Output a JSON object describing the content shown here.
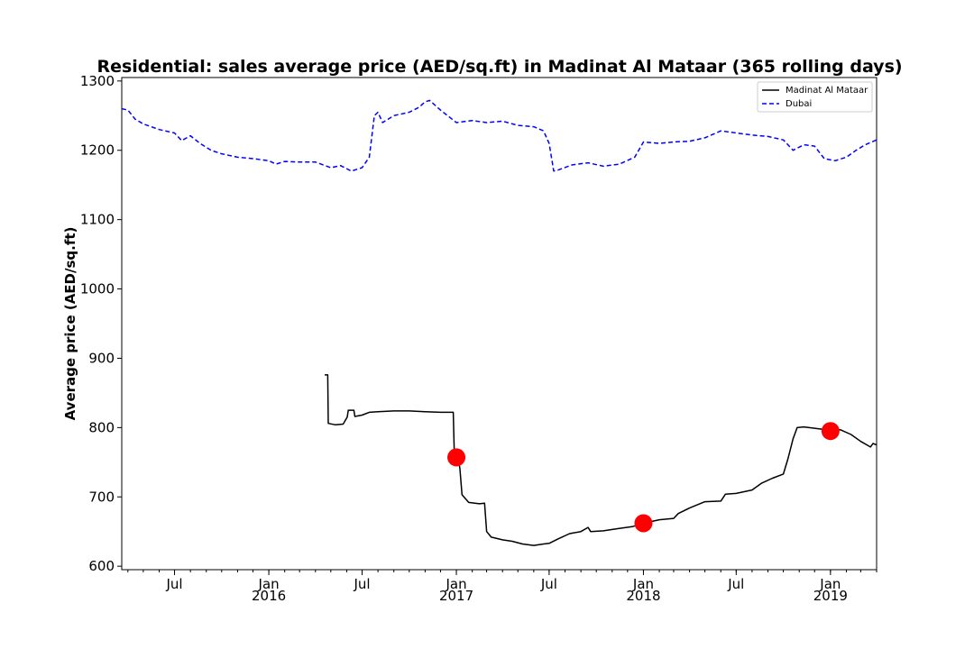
{
  "chart_data": {
    "type": "line",
    "title": "Residential: sales average price (AED/sq.ft) in Madinat Al Mataar (365 rolling days)",
    "xlabel": "",
    "ylabel": "Average price (AED/sq.ft)",
    "xlim": [
      "2015-03-20",
      "2019-04-01"
    ],
    "ylim": [
      595,
      1305
    ],
    "yticks": [
      600,
      700,
      800,
      900,
      1000,
      1100,
      1200,
      1300
    ],
    "xticks": [
      {
        "date": "2015-07-01",
        "label": "Jul",
        "year": ""
      },
      {
        "date": "2016-01-01",
        "label": "Jan",
        "year": "2016"
      },
      {
        "date": "2016-07-01",
        "label": "Jul",
        "year": ""
      },
      {
        "date": "2017-01-01",
        "label": "Jan",
        "year": "2017"
      },
      {
        "date": "2017-07-01",
        "label": "Jul",
        "year": ""
      },
      {
        "date": "2018-01-01",
        "label": "Jan",
        "year": "2018"
      },
      {
        "date": "2018-07-01",
        "label": "Jul",
        "year": ""
      },
      {
        "date": "2019-01-01",
        "label": "Jan",
        "year": "2019"
      }
    ],
    "grid": false,
    "legend_position": "top-right",
    "series": [
      {
        "name": "Madinat Al Mataar",
        "color": "#000000",
        "dash": "solid",
        "points": [
          [
            "2016-04-19",
            876
          ],
          [
            "2016-04-25",
            876
          ],
          [
            "2016-04-26",
            806
          ],
          [
            "2016-05-10",
            804
          ],
          [
            "2016-05-25",
            805
          ],
          [
            "2016-06-02",
            815
          ],
          [
            "2016-06-04",
            825
          ],
          [
            "2016-06-15",
            825
          ],
          [
            "2016-06-17",
            816
          ],
          [
            "2016-07-01",
            818
          ],
          [
            "2016-07-15",
            822
          ],
          [
            "2016-08-01",
            823
          ],
          [
            "2016-09-01",
            824
          ],
          [
            "2016-10-01",
            824
          ],
          [
            "2016-11-01",
            823
          ],
          [
            "2016-12-01",
            822
          ],
          [
            "2016-12-26",
            822
          ],
          [
            "2016-12-28",
            759
          ],
          [
            "2017-01-05",
            756
          ],
          [
            "2017-01-08",
            740
          ],
          [
            "2017-01-12",
            703
          ],
          [
            "2017-01-25",
            692
          ],
          [
            "2017-02-15",
            690
          ],
          [
            "2017-02-25",
            691
          ],
          [
            "2017-03-01",
            650
          ],
          [
            "2017-03-10",
            642
          ],
          [
            "2017-04-01",
            638
          ],
          [
            "2017-04-20",
            636
          ],
          [
            "2017-05-10",
            632
          ],
          [
            "2017-06-01",
            630
          ],
          [
            "2017-06-20",
            632
          ],
          [
            "2017-07-01",
            633
          ],
          [
            "2017-07-20",
            640
          ],
          [
            "2017-08-10",
            647
          ],
          [
            "2017-09-01",
            650
          ],
          [
            "2017-09-15",
            656
          ],
          [
            "2017-09-20",
            650
          ],
          [
            "2017-10-15",
            651
          ],
          [
            "2017-11-10",
            654
          ],
          [
            "2017-12-10",
            657
          ],
          [
            "2018-01-01",
            662
          ],
          [
            "2018-02-01",
            667
          ],
          [
            "2018-03-01",
            669
          ],
          [
            "2018-03-10",
            676
          ],
          [
            "2018-04-01",
            684
          ],
          [
            "2018-05-01",
            693
          ],
          [
            "2018-06-01",
            694
          ],
          [
            "2018-06-10",
            704
          ],
          [
            "2018-07-01",
            705
          ],
          [
            "2018-08-01",
            710
          ],
          [
            "2018-08-20",
            720
          ],
          [
            "2018-09-10",
            727
          ],
          [
            "2018-10-01",
            733
          ],
          [
            "2018-10-10",
            755
          ],
          [
            "2018-10-20",
            784
          ],
          [
            "2018-10-28",
            800
          ],
          [
            "2018-11-10",
            801
          ],
          [
            "2018-12-01",
            799
          ],
          [
            "2019-01-01",
            796
          ],
          [
            "2019-01-20",
            797
          ],
          [
            "2019-02-10",
            790
          ],
          [
            "2019-03-01",
            780
          ],
          [
            "2019-03-20",
            772
          ],
          [
            "2019-03-25",
            777
          ],
          [
            "2019-04-01",
            775
          ]
        ]
      },
      {
        "name": "Dubai",
        "color": "#0000ff",
        "dash": "dashed",
        "points": [
          [
            "2015-03-20",
            1260
          ],
          [
            "2015-04-01",
            1258
          ],
          [
            "2015-04-15",
            1245
          ],
          [
            "2015-05-01",
            1238
          ],
          [
            "2015-06-01",
            1230
          ],
          [
            "2015-07-01",
            1225
          ],
          [
            "2015-07-15",
            1214
          ],
          [
            "2015-08-01",
            1221
          ],
          [
            "2015-08-20",
            1210
          ],
          [
            "2015-09-10",
            1200
          ],
          [
            "2015-10-01",
            1195
          ],
          [
            "2015-11-01",
            1190
          ],
          [
            "2015-12-01",
            1188
          ],
          [
            "2016-01-01",
            1185
          ],
          [
            "2016-01-15",
            1180
          ],
          [
            "2016-02-01",
            1184
          ],
          [
            "2016-03-01",
            1183
          ],
          [
            "2016-04-01",
            1183
          ],
          [
            "2016-05-01",
            1175
          ],
          [
            "2016-05-20",
            1178
          ],
          [
            "2016-06-10",
            1170
          ],
          [
            "2016-07-01",
            1175
          ],
          [
            "2016-07-15",
            1190
          ],
          [
            "2016-07-25",
            1250
          ],
          [
            "2016-08-01",
            1255
          ],
          [
            "2016-08-10",
            1240
          ],
          [
            "2016-09-01",
            1250
          ],
          [
            "2016-10-01",
            1255
          ],
          [
            "2016-10-20",
            1262
          ],
          [
            "2016-11-01",
            1270
          ],
          [
            "2016-11-10",
            1272
          ],
          [
            "2016-12-01",
            1258
          ],
          [
            "2017-01-01",
            1240
          ],
          [
            "2017-02-01",
            1243
          ],
          [
            "2017-03-01",
            1240
          ],
          [
            "2017-04-01",
            1242
          ],
          [
            "2017-05-01",
            1236
          ],
          [
            "2017-06-01",
            1234
          ],
          [
            "2017-06-20",
            1228
          ],
          [
            "2017-07-01",
            1210
          ],
          [
            "2017-07-10",
            1170
          ],
          [
            "2017-07-20",
            1172
          ],
          [
            "2017-08-15",
            1179
          ],
          [
            "2017-09-15",
            1182
          ],
          [
            "2017-10-15",
            1177
          ],
          [
            "2017-11-15",
            1180
          ],
          [
            "2017-12-15",
            1190
          ],
          [
            "2018-01-01",
            1212
          ],
          [
            "2018-02-01",
            1210
          ],
          [
            "2018-03-01",
            1212
          ],
          [
            "2018-04-01",
            1213
          ],
          [
            "2018-05-01",
            1218
          ],
          [
            "2018-06-01",
            1228
          ],
          [
            "2018-07-01",
            1225
          ],
          [
            "2018-08-01",
            1222
          ],
          [
            "2018-09-01",
            1220
          ],
          [
            "2018-10-01",
            1215
          ],
          [
            "2018-10-20",
            1200
          ],
          [
            "2018-11-10",
            1208
          ],
          [
            "2018-12-01",
            1206
          ],
          [
            "2018-12-20",
            1188
          ],
          [
            "2019-01-10",
            1185
          ],
          [
            "2019-02-01",
            1190
          ],
          [
            "2019-02-20",
            1200
          ],
          [
            "2019-03-10",
            1208
          ],
          [
            "2019-04-01",
            1215
          ]
        ]
      }
    ],
    "markers": {
      "color": "#ff0000",
      "points": [
        [
          "2017-01-01",
          757
        ],
        [
          "2018-01-01",
          662
        ],
        [
          "2019-01-01",
          795
        ]
      ]
    }
  }
}
